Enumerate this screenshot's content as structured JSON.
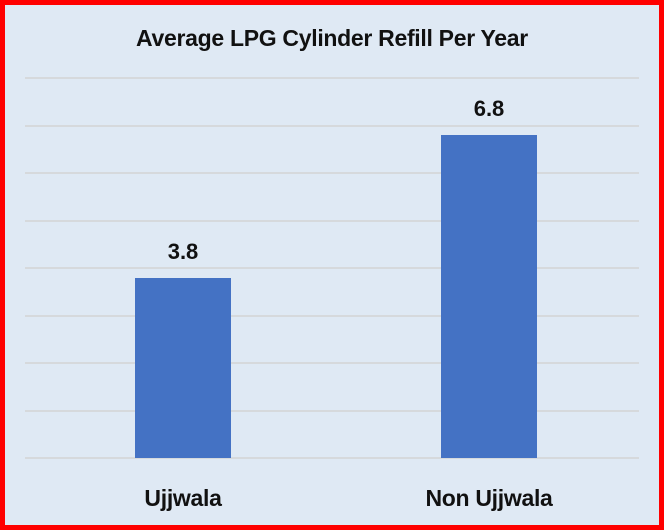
{
  "chart_data": {
    "type": "bar",
    "title": "Average LPG Cylinder Refill Per Year",
    "categories": [
      "Ujjwala",
      "Non Ujjwala"
    ],
    "values": [
      3.8,
      6.8
    ],
    "data_labels": [
      "3.8",
      "6.8"
    ],
    "xlabel": "",
    "ylabel": "",
    "ylim": [
      0,
      8
    ],
    "gridlines": 9,
    "grid": true,
    "legend": "none",
    "colors": {
      "bar": "#4472c4",
      "background": "#dfe9f4",
      "border": "#ff0000",
      "grid": "#d6d9dc"
    }
  }
}
